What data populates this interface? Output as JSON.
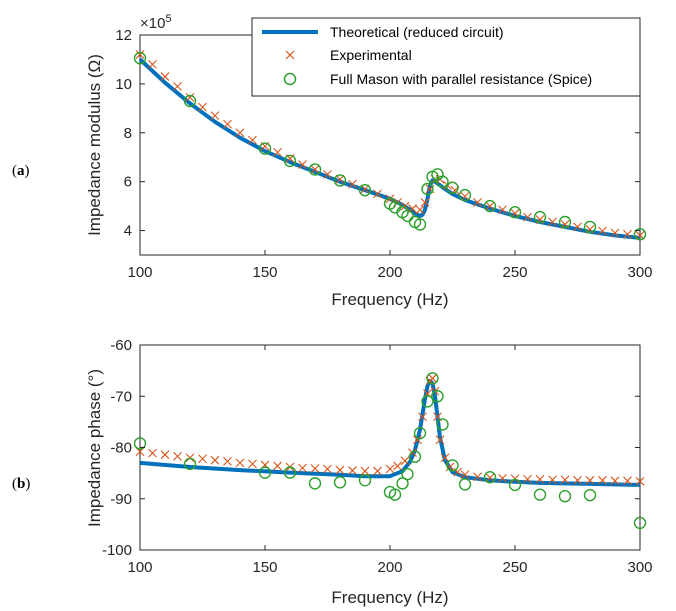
{
  "chart_data": [
    {
      "panel_label": "a",
      "type": "line",
      "title": "",
      "xlabel": "Frequency (Hz)",
      "ylabel": "Impedance modulus (Ω)",
      "y_multiplier_label": "×10",
      "y_multiplier_exponent": "5",
      "xlim": [
        100,
        300
      ],
      "ylim": [
        3,
        12
      ],
      "xticks": [
        100,
        150,
        200,
        250,
        300
      ],
      "yticks": [
        4,
        6,
        8,
        10,
        12
      ],
      "grid": false,
      "legend_position": "top-right",
      "series": [
        {
          "name": "Theoretical (reduced circuit)",
          "style": "line",
          "color": "#0072BD",
          "x": [
            100,
            110,
            120,
            130,
            140,
            150,
            160,
            170,
            180,
            190,
            200,
            205,
            208,
            210,
            212,
            213,
            214,
            215,
            216,
            217,
            218,
            220,
            222,
            225,
            230,
            240,
            250,
            260,
            270,
            280,
            290,
            300
          ],
          "y": [
            11.0,
            10.05,
            9.2,
            8.45,
            7.8,
            7.25,
            6.8,
            6.4,
            6.0,
            5.65,
            5.3,
            5.05,
            4.85,
            4.7,
            4.6,
            4.65,
            4.85,
            5.3,
            5.85,
            6.05,
            6.0,
            5.85,
            5.7,
            5.5,
            5.25,
            4.9,
            4.6,
            4.35,
            4.15,
            3.95,
            3.8,
            3.7
          ]
        },
        {
          "name": "Experimental",
          "style": "markers",
          "marker": "x",
          "color": "#D95319",
          "x": [
            100,
            105,
            110,
            115,
            120,
            125,
            130,
            135,
            140,
            145,
            150,
            155,
            160,
            165,
            170,
            175,
            180,
            185,
            190,
            195,
            200,
            203,
            206,
            209,
            212,
            214,
            216,
            218,
            220,
            223,
            226,
            230,
            235,
            240,
            245,
            250,
            255,
            260,
            265,
            270,
            275,
            280,
            285,
            290,
            295,
            300
          ],
          "y": [
            11.2,
            10.8,
            10.3,
            9.9,
            9.45,
            9.05,
            8.7,
            8.35,
            8.0,
            7.7,
            7.45,
            7.2,
            6.95,
            6.7,
            6.5,
            6.3,
            6.1,
            5.9,
            5.7,
            5.5,
            5.3,
            5.15,
            5.0,
            4.9,
            4.85,
            5.15,
            5.7,
            6.1,
            6.1,
            5.85,
            5.65,
            5.4,
            5.15,
            5.0,
            4.85,
            4.7,
            4.55,
            4.45,
            4.35,
            4.25,
            4.15,
            4.05,
            3.98,
            3.9,
            3.85,
            3.8
          ]
        },
        {
          "name": "Full Mason with parallel resistance (Spice)",
          "style": "markers",
          "marker": "o",
          "color": "#2CA02C",
          "x": [
            100,
            120,
            150,
            160,
            170,
            180,
            190,
            200,
            202,
            205,
            207,
            210,
            212,
            215,
            217,
            219,
            221,
            225,
            230,
            240,
            250,
            260,
            270,
            280,
            300
          ],
          "y": [
            11.05,
            9.3,
            7.35,
            6.85,
            6.5,
            6.05,
            5.65,
            5.1,
            4.95,
            4.75,
            4.6,
            4.35,
            4.25,
            5.7,
            6.2,
            6.3,
            6.0,
            5.75,
            5.45,
            5.0,
            4.75,
            4.55,
            4.35,
            4.15,
            3.85
          ]
        }
      ]
    },
    {
      "panel_label": "b",
      "type": "line",
      "title": "",
      "xlabel": "Frequency (Hz)",
      "ylabel": "Impedance phase (°)",
      "xlim": [
        100,
        300
      ],
      "ylim": [
        -100,
        -60
      ],
      "xticks": [
        100,
        150,
        200,
        250,
        300
      ],
      "yticks": [
        -100,
        -90,
        -80,
        -70,
        -60
      ],
      "grid": false,
      "series": [
        {
          "name": "Theoretical (reduced circuit)",
          "style": "line",
          "color": "#0072BD",
          "x": [
            100,
            120,
            140,
            160,
            180,
            190,
            200,
            205,
            208,
            210,
            212,
            213,
            214,
            215,
            216,
            217,
            218,
            219,
            220,
            222,
            225,
            230,
            240,
            250,
            260,
            280,
            300
          ],
          "y": [
            -83.0,
            -83.8,
            -84.4,
            -84.9,
            -85.3,
            -85.6,
            -85.6,
            -84.6,
            -82.8,
            -80.5,
            -76.5,
            -73.5,
            -70.5,
            -68.0,
            -67.0,
            -67.5,
            -70.0,
            -74.0,
            -78.0,
            -82.5,
            -84.8,
            -85.8,
            -86.4,
            -86.7,
            -86.9,
            -87.1,
            -87.3
          ]
        },
        {
          "name": "Experimental",
          "style": "markers",
          "marker": "x",
          "color": "#D95319",
          "x": [
            100,
            105,
            110,
            115,
            120,
            125,
            130,
            135,
            140,
            145,
            150,
            155,
            160,
            165,
            170,
            175,
            180,
            185,
            190,
            195,
            200,
            203,
            206,
            209,
            211,
            213,
            215,
            216,
            217,
            218,
            219,
            220,
            222,
            224,
            227,
            230,
            235,
            240,
            245,
            250,
            255,
            260,
            265,
            270,
            275,
            280,
            285,
            290,
            295,
            300
          ],
          "y": [
            -80.8,
            -81.1,
            -81.4,
            -81.7,
            -82.0,
            -82.2,
            -82.5,
            -82.7,
            -83.0,
            -83.2,
            -83.4,
            -83.6,
            -83.8,
            -84.0,
            -84.1,
            -84.2,
            -84.4,
            -84.5,
            -84.6,
            -84.6,
            -84.2,
            -83.6,
            -82.6,
            -81.0,
            -78.5,
            -74.0,
            -69.5,
            -67.0,
            -66.5,
            -69.0,
            -74.0,
            -78.5,
            -82.0,
            -83.8,
            -84.8,
            -85.3,
            -85.7,
            -85.9,
            -86.0,
            -86.1,
            -86.2,
            -86.2,
            -86.3,
            -86.3,
            -86.4,
            -86.4,
            -86.4,
            -86.5,
            -86.5,
            -86.6
          ]
        },
        {
          "name": "Full Mason with parallel resistance (Spice)",
          "style": "markers",
          "marker": "o",
          "color": "#2CA02C",
          "x": [
            100,
            120,
            150,
            160,
            170,
            180,
            190,
            200,
            202,
            205,
            207,
            210,
            212,
            215,
            217,
            219,
            221,
            225,
            230,
            240,
            250,
            260,
            270,
            280,
            300
          ],
          "y": [
            -79.2,
            -83.2,
            -84.9,
            -84.9,
            -87.0,
            -86.8,
            -86.4,
            -88.7,
            -89.2,
            -87.0,
            -85.2,
            -81.8,
            -77.2,
            -71.0,
            -66.5,
            -70.0,
            -75.5,
            -83.5,
            -87.2,
            -85.8,
            -87.3,
            -89.2,
            -89.5,
            -89.3,
            -94.7
          ]
        }
      ]
    }
  ]
}
